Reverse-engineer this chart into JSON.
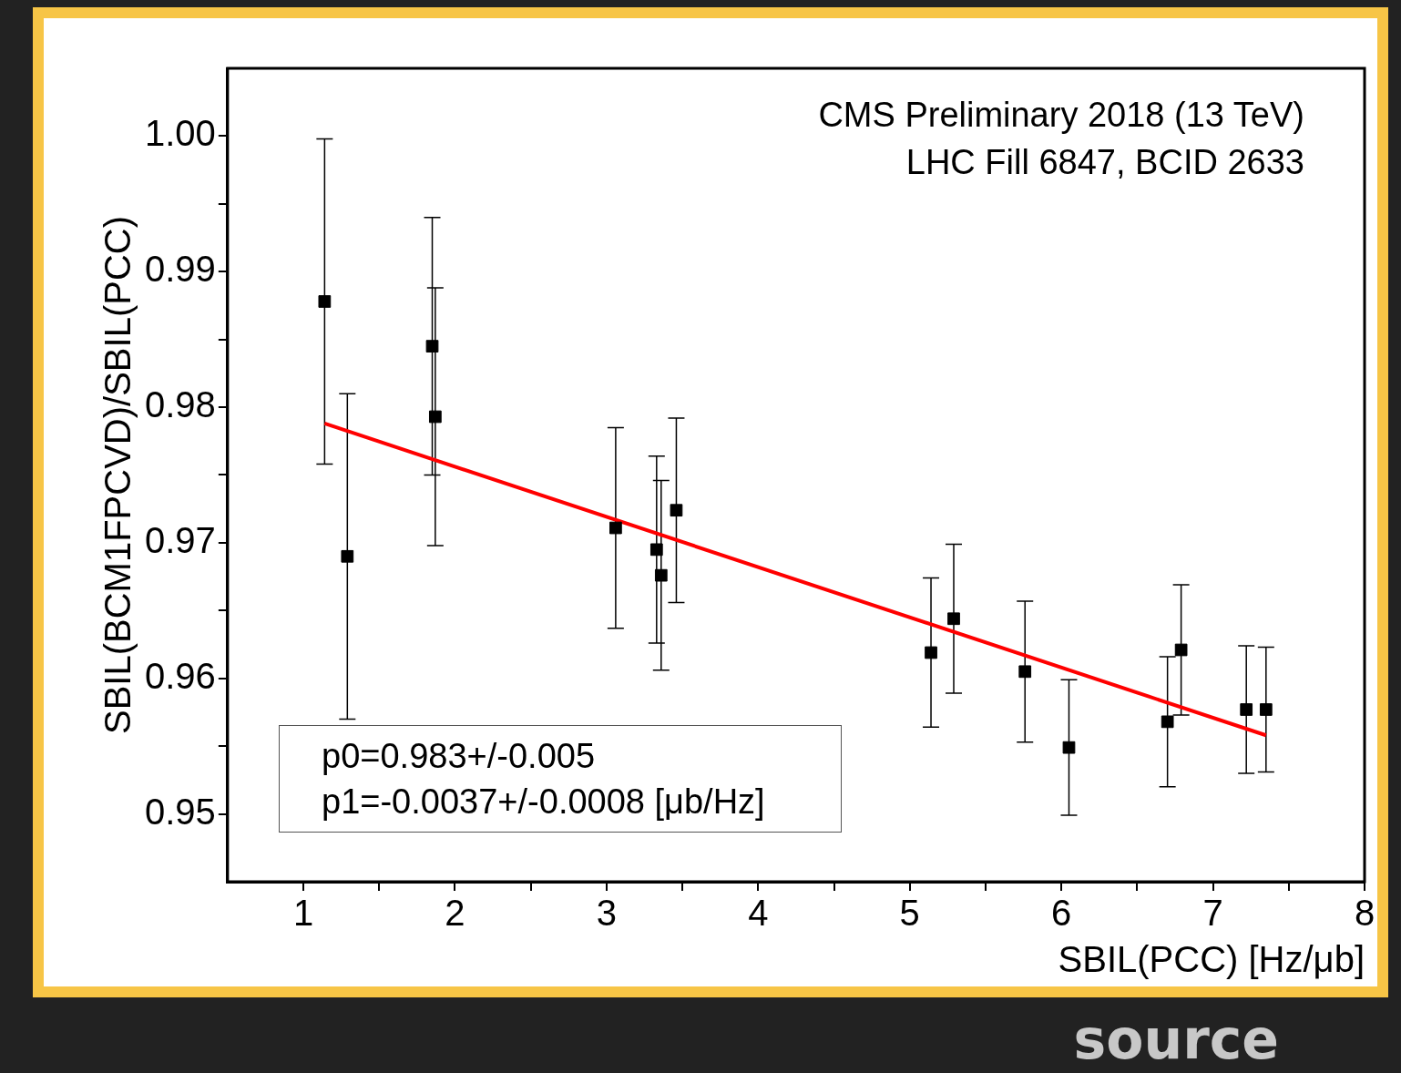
{
  "chart_data": {
    "type": "scatter",
    "xlabel": "SBIL(PCC) [Hz/μb]",
    "ylabel": "SBIL(BCM1FPCVD)/SBIL(PCC)",
    "xlim": [
      0.5,
      8
    ],
    "ylim": [
      0.945,
      1.005
    ],
    "xticks": [
      1,
      {
        "value": 1.5,
        "label": null
      },
      2,
      {
        "value": 2.5,
        "label": null
      },
      3,
      {
        "value": 3.5,
        "label": null
      },
      4,
      {
        "value": 4.5,
        "label": null
      },
      5,
      {
        "value": 5.5,
        "label": null
      },
      6,
      {
        "value": 6.5,
        "label": null
      },
      7,
      {
        "value": 7.5,
        "label": null
      },
      8
    ],
    "yticks": [
      {
        "value": 0.95,
        "label": "0.95"
      },
      {
        "value": 0.955,
        "label": null
      },
      {
        "value": 0.96,
        "label": "0.96"
      },
      {
        "value": 0.965,
        "label": null
      },
      {
        "value": 0.97,
        "label": "0.97"
      },
      {
        "value": 0.975,
        "label": null
      },
      {
        "value": 0.98,
        "label": "0.98"
      },
      {
        "value": 0.985,
        "label": null
      },
      {
        "value": 0.99,
        "label": "0.99"
      },
      {
        "value": 0.995,
        "label": null
      },
      {
        "value": 1.0,
        "label": "1.00"
      }
    ],
    "grid": false,
    "legend": false,
    "marker": "square",
    "series": [
      {
        "color": "#000000",
        "x": [
          1.14,
          1.29,
          1.85,
          1.87,
          3.06,
          3.33,
          3.36,
          3.46,
          5.14,
          5.29,
          5.76,
          6.05,
          6.7,
          6.79,
          7.22,
          7.35
        ],
        "values": [
          0.9878,
          0.969,
          0.9845,
          0.9793,
          0.9711,
          0.9695,
          0.9676,
          0.9724,
          0.9619,
          0.9644,
          0.9605,
          0.9549,
          0.9568,
          0.9621,
          0.9577,
          0.9577
        ],
        "errors": [
          0.012,
          0.012,
          0.0095,
          0.0095,
          0.0074,
          0.0069,
          0.007,
          0.0068,
          0.0055,
          0.0055,
          0.0052,
          0.005,
          0.0048,
          0.0048,
          0.0047,
          0.0046
        ]
      },
      {
        "type": "line",
        "color": "#ff0000",
        "marker": "none",
        "x": [
          1.14,
          7.35
        ],
        "values": [
          0.9788,
          0.9558
        ]
      }
    ],
    "annotations": [
      "CMS Preliminary 2018 (13 TeV)",
      "LHC Fill 6847, BCID 2633",
      "p0=0.983+/-0.005",
      "p1=-0.0037+/-0.0008 [μb/Hz]",
      "source"
    ]
  }
}
